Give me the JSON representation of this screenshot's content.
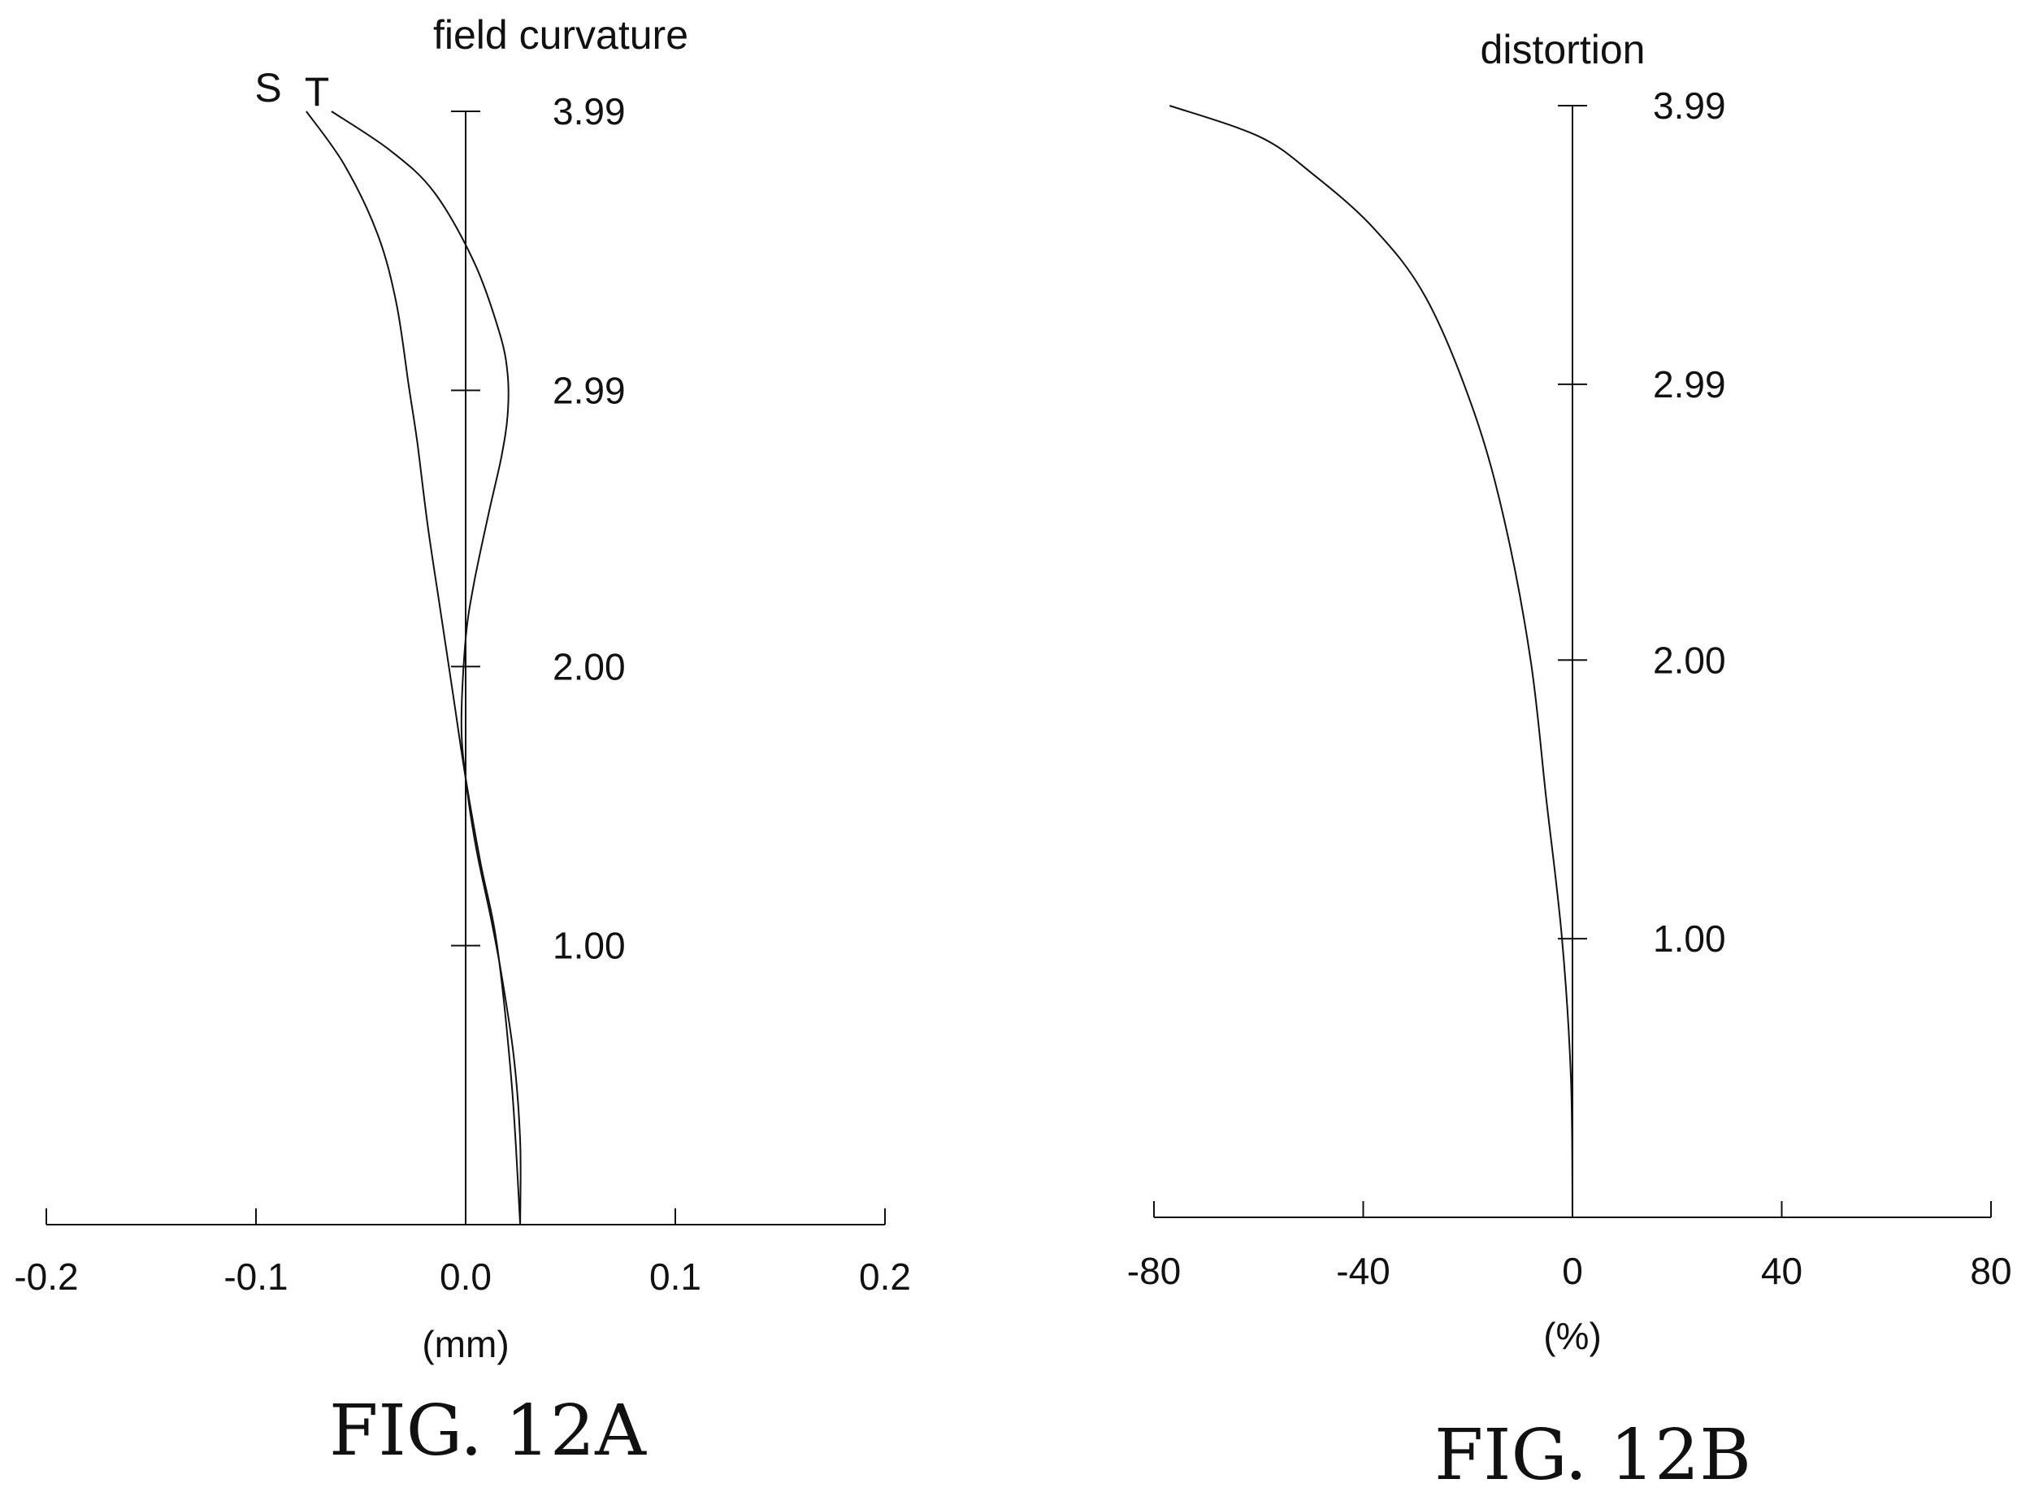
{
  "chart_data": [
    {
      "type": "line",
      "title": "field curvature",
      "xlabel": "(mm)",
      "ylabel": "",
      "xlim": [
        -0.2,
        0.2
      ],
      "ylim": [
        0,
        3.99
      ],
      "x_ticks": [
        "-0.2",
        "-0.1",
        "0.0",
        "0.1",
        "0.2"
      ],
      "y_ticks": [
        "1.00",
        "2.00",
        "2.99",
        "3.99"
      ],
      "grid": false,
      "series": [
        {
          "name": "S",
          "points": [
            [
              0.026,
              0
            ],
            [
              0.022,
              0.5
            ],
            [
              0.015,
              1.0
            ],
            [
              0.007,
              1.3
            ],
            [
              0.0,
              1.6
            ],
            [
              -0.006,
              1.9
            ],
            [
              -0.012,
              2.2
            ],
            [
              -0.018,
              2.5
            ],
            [
              -0.023,
              2.8
            ],
            [
              -0.027,
              3.0
            ],
            [
              -0.033,
              3.3
            ],
            [
              -0.042,
              3.55
            ],
            [
              -0.058,
              3.8
            ],
            [
              -0.076,
              3.99
            ]
          ]
        },
        {
          "name": "T",
          "points": [
            [
              0.026,
              0
            ],
            [
              0.026,
              0.3
            ],
            [
              0.023,
              0.6
            ],
            [
              0.017,
              0.9
            ],
            [
              0.012,
              1.1
            ],
            [
              0.005,
              1.35
            ],
            [
              0.0,
              1.6
            ],
            [
              -0.002,
              1.8
            ],
            [
              0.0,
              2.1
            ],
            [
              0.004,
              2.3
            ],
            [
              0.011,
              2.55
            ],
            [
              0.017,
              2.75
            ],
            [
              0.02,
              2.9
            ],
            [
              0.02,
              3.05
            ],
            [
              0.016,
              3.2
            ],
            [
              0.004,
              3.45
            ],
            [
              -0.015,
              3.7
            ],
            [
              -0.036,
              3.85
            ],
            [
              -0.064,
              3.99
            ]
          ]
        }
      ]
    },
    {
      "type": "line",
      "title": "distortion",
      "xlabel": "(%)",
      "ylabel": "",
      "xlim": [
        -80,
        80
      ],
      "ylim": [
        0,
        3.99
      ],
      "x_ticks": [
        "-80",
        "-40",
        "0",
        "40",
        "80"
      ],
      "y_ticks": [
        "1.00",
        "2.00",
        "2.99",
        "3.99"
      ],
      "grid": false,
      "series": [
        {
          "name": "",
          "points": [
            [
              0,
              0
            ],
            [
              -0.3,
              0.5
            ],
            [
              -2,
              1.0
            ],
            [
              -5,
              1.5
            ],
            [
              -8,
              2.0
            ],
            [
              -13,
              2.5
            ],
            [
              -19,
              2.9
            ],
            [
              -28,
              3.3
            ],
            [
              -38,
              3.55
            ],
            [
              -50,
              3.75
            ],
            [
              -60,
              3.88
            ],
            [
              -77,
              3.99
            ]
          ]
        }
      ]
    }
  ],
  "captions": {
    "fig_a": "FIG. 12A",
    "fig_b": "FIG. 12B"
  }
}
